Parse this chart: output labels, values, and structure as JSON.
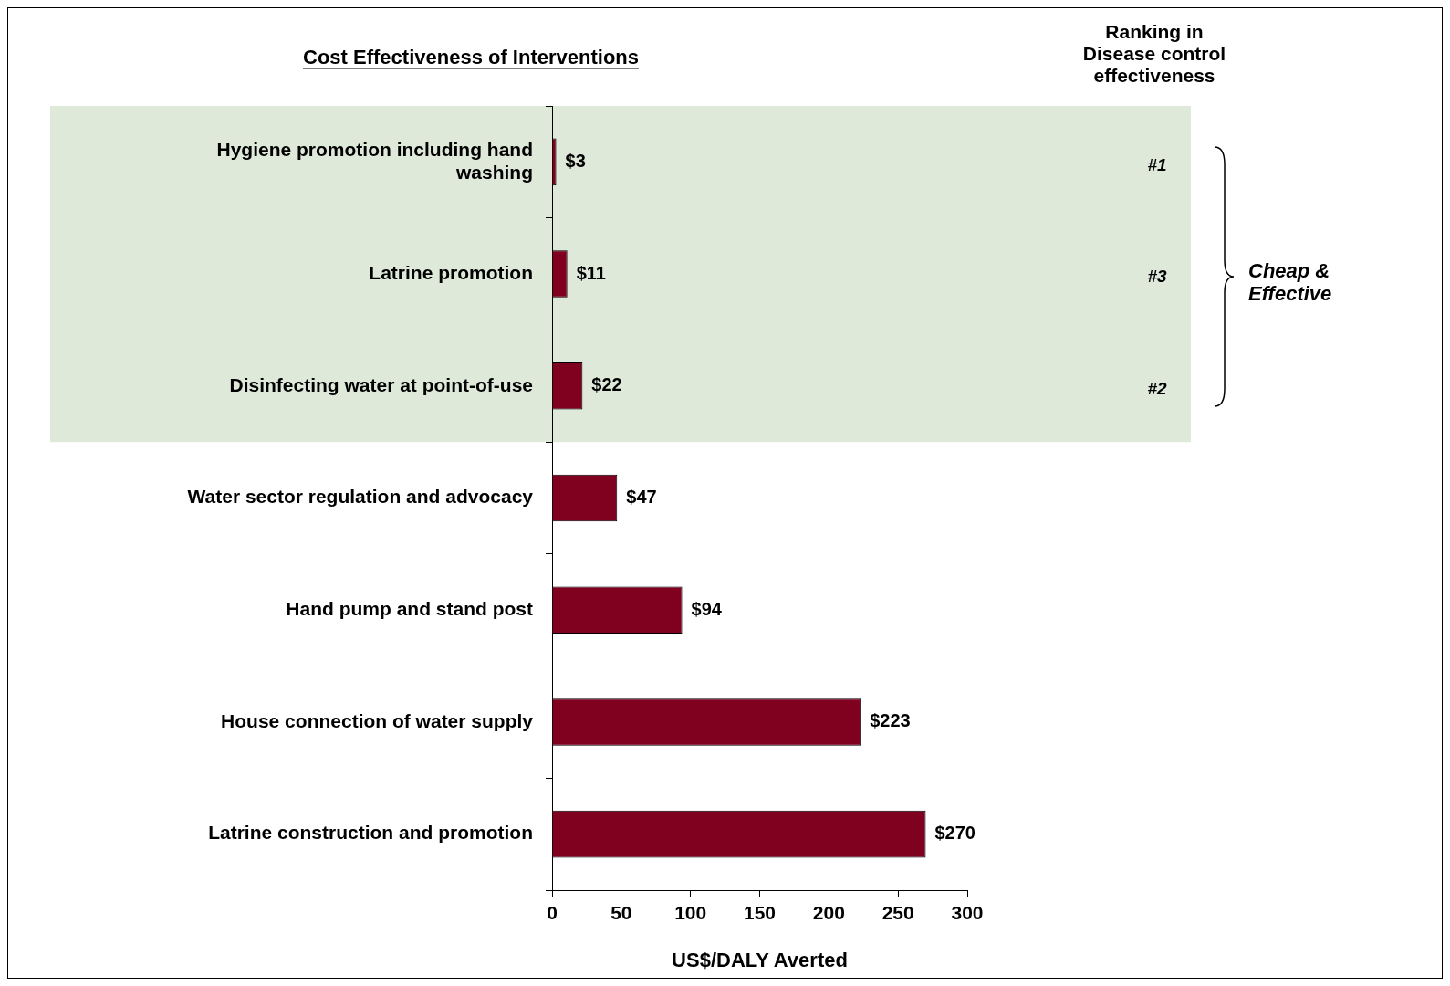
{
  "chart_data": {
    "type": "bar",
    "orientation": "horizontal",
    "title": "Cost Effectiveness of Interventions",
    "xlabel": "US$/DALY Averted",
    "categories": [
      "Hygiene promotion including hand washing",
      "Latrine promotion",
      "Disinfecting water at point-of-use",
      "Water sector regulation and advocacy",
      "Hand pump and stand post",
      "House connection of water supply",
      "Latrine construction and promotion"
    ],
    "values": [
      3,
      11,
      22,
      47,
      94,
      223,
      270
    ],
    "value_labels": [
      "$3",
      "$11",
      "$22",
      "$47",
      "$94",
      "$223",
      "$270"
    ],
    "color": "#800020",
    "xlim": [
      0,
      300
    ],
    "xticks": [
      0,
      50,
      100,
      150,
      200,
      250,
      300
    ],
    "grid": false,
    "legend": false,
    "bands": [
      {
        "axis": "y",
        "from": "Hygiene promotion including hand washing",
        "to": "Disinfecting water at point-of-use",
        "color": "#dfe9d9"
      }
    ],
    "annotations": [
      "Ranking in Disease control effectiveness",
      "#1",
      "#3",
      "#2",
      "Cheap & Effective"
    ]
  }
}
